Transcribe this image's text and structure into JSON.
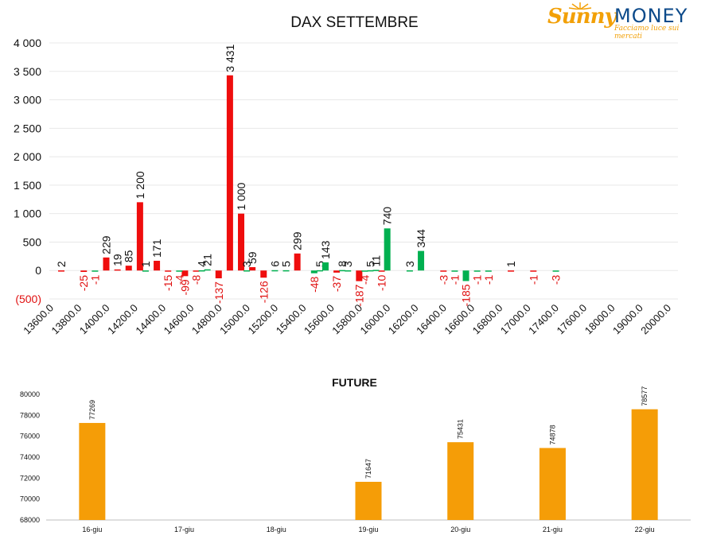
{
  "logo": {
    "brand_part1": "Sunny",
    "brand_part2": "MONEY",
    "tagline": "Facciamo luce sui mercati"
  },
  "colors": {
    "negative": "#ef0d0d",
    "positive": "#00b050",
    "future": "#f59d07",
    "grid": "#e8e8e8",
    "label_negative": "#e01010"
  },
  "chart_data": [
    {
      "type": "bar",
      "title": "DAX SETTEMBRE",
      "ylim": [
        -500,
        4000
      ],
      "yticks": [
        {
          "value": 4000,
          "label": "4 000"
        },
        {
          "value": 3500,
          "label": "3 500"
        },
        {
          "value": 3000,
          "label": "3 000"
        },
        {
          "value": 2500,
          "label": "2 500"
        },
        {
          "value": 2000,
          "label": "2 000"
        },
        {
          "value": 1500,
          "label": "1 500"
        },
        {
          "value": 1000,
          "label": "1 000"
        },
        {
          "value": 500,
          "label": "500"
        },
        {
          "value": 0,
          "label": "0"
        },
        {
          "value": -500,
          "label": "(500)"
        }
      ],
      "x_ticks": [
        "13600.0",
        "13800.0",
        "14000.0",
        "14200.0",
        "14400.0",
        "14600.0",
        "14800.0",
        "15000.0",
        "15200.0",
        "15400.0",
        "15600.0",
        "15800.0",
        "16000.0",
        "16200.0",
        "16400.0",
        "16600.0",
        "16800.0",
        "17000.0",
        "17400.0",
        "17600.0",
        "18000.0",
        "19000.0",
        "20000.0"
      ],
      "grid": true,
      "series": [
        {
          "color": "negative",
          "points": [
            {
              "x": 13600,
              "value": 2,
              "label": "2"
            },
            {
              "x": 13800,
              "value": -25,
              "label": "-25"
            },
            {
              "x": 14000,
              "value": 229,
              "label": "229"
            },
            {
              "x": 14100,
              "value": 19,
              "label": "19"
            },
            {
              "x": 14200,
              "value": 85,
              "label": "85"
            },
            {
              "x": 14300,
              "value": 1200,
              "label": "1 200"
            },
            {
              "x": 14450,
              "value": 171,
              "label": "171"
            },
            {
              "x": 14550,
              "value": -15,
              "label": "-15"
            },
            {
              "x": 14700,
              "value": -99,
              "label": "-99"
            },
            {
              "x": 14800,
              "value": -8,
              "label": "-8"
            },
            {
              "x": 15000,
              "value": -137,
              "label": "-137"
            },
            {
              "x": 15100,
              "value": 3431,
              "label": "3 431"
            },
            {
              "x": 15200,
              "value": 1000,
              "label": "1 000"
            },
            {
              "x": 15300,
              "value": 59,
              "label": "59"
            },
            {
              "x": 15400,
              "value": -126,
              "label": "-126"
            },
            {
              "x": 15700,
              "value": 299,
              "label": "299"
            },
            {
              "x": 16050,
              "value": -37,
              "label": "-37"
            },
            {
              "x": 16250,
              "value": -187,
              "label": "-187"
            },
            {
              "x": 16450,
              "value": -10,
              "label": "-10"
            },
            {
              "x": 17000,
              "value": -3,
              "label": "-3"
            },
            {
              "x": 17600,
              "value": 1,
              "label": "1"
            },
            {
              "x": 17800,
              "value": -1,
              "label": "-1"
            }
          ]
        },
        {
          "color": "positive",
          "points": [
            {
              "x": 13900,
              "value": -1,
              "label": "-1"
            },
            {
              "x": 14350,
              "value": 1,
              "label": "1"
            },
            {
              "x": 14650,
              "value": -4,
              "label": "-4"
            },
            {
              "x": 14850,
              "value": 4,
              "label": "4"
            },
            {
              "x": 14900,
              "value": 21,
              "label": "21"
            },
            {
              "x": 15250,
              "value": 3,
              "label": "3"
            },
            {
              "x": 15500,
              "value": 6,
              "label": "6"
            },
            {
              "x": 15600,
              "value": 5,
              "label": "5"
            },
            {
              "x": 15850,
              "value": -48,
              "label": "-48"
            },
            {
              "x": 15900,
              "value": 5,
              "label": "5"
            },
            {
              "x": 15950,
              "value": 143,
              "label": "143"
            },
            {
              "x": 16100,
              "value": 8,
              "label": "8"
            },
            {
              "x": 16150,
              "value": 3,
              "label": "3"
            },
            {
              "x": 16300,
              "value": -4,
              "label": "-4"
            },
            {
              "x": 16350,
              "value": 5,
              "label": "5"
            },
            {
              "x": 16400,
              "value": 11,
              "label": "11"
            },
            {
              "x": 16500,
              "value": 740,
              "label": "740"
            },
            {
              "x": 16700,
              "value": 3,
              "label": "3"
            },
            {
              "x": 16800,
              "value": 344,
              "label": "344"
            },
            {
              "x": 17100,
              "value": -1,
              "label": "-1"
            },
            {
              "x": 17200,
              "value": -185,
              "label": "-185"
            },
            {
              "x": 17300,
              "value": -1,
              "label": "-1"
            },
            {
              "x": 17400,
              "value": -1,
              "label": "-1"
            },
            {
              "x": 18000,
              "value": -3,
              "label": "-3"
            }
          ]
        }
      ]
    },
    {
      "type": "bar",
      "title": "FUTURE",
      "ylim": [
        68000,
        80000
      ],
      "yticks": [
        68000,
        70000,
        72000,
        74000,
        76000,
        78000,
        80000
      ],
      "categories": [
        "16-giu",
        "17-giu",
        "18-giu",
        "19-giu",
        "20-giu",
        "21-giu",
        "22-giu"
      ],
      "values": [
        77269,
        null,
        null,
        71647,
        75431,
        74878,
        78577
      ],
      "color": "future"
    }
  ]
}
